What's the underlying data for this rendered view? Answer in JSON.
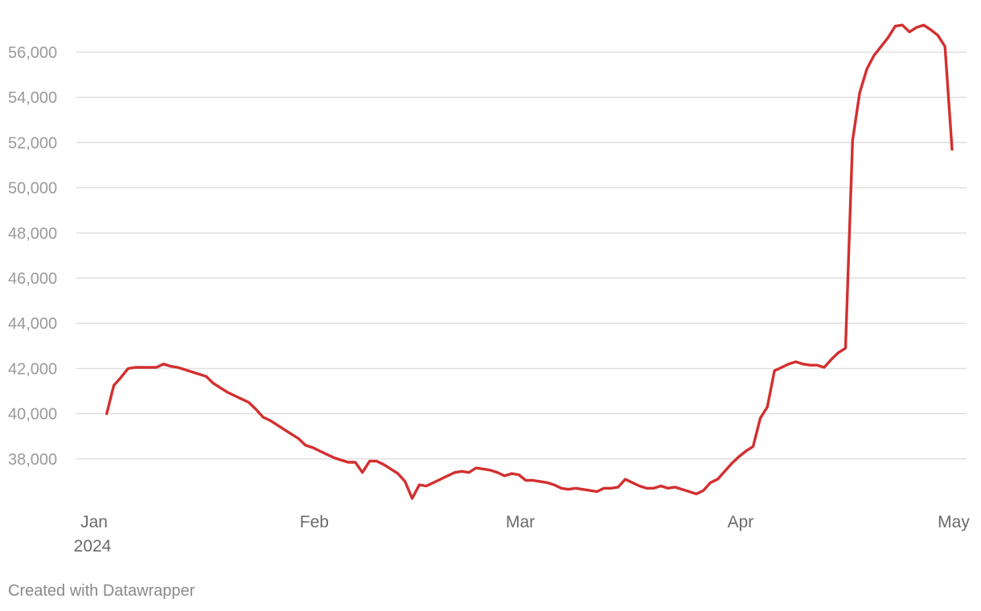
{
  "credit": "Created with Datawrapper",
  "colors": {
    "series": "#d32f2f",
    "grid": "#dedede",
    "ytick": "#9a9a9a",
    "xtick": "#6b6b6b"
  },
  "chart_data": {
    "type": "line",
    "title": "",
    "xlabel": "",
    "ylabel": "",
    "grid": "horizontal",
    "xlim": [
      "2024-01-01",
      "2024-05-01"
    ],
    "ylim": [
      36000,
      57600
    ],
    "yticks": [
      38000,
      40000,
      42000,
      44000,
      46000,
      48000,
      50000,
      52000,
      54000,
      56000
    ],
    "ytick_labels": [
      "38,000",
      "40,000",
      "42,000",
      "44,000",
      "46,000",
      "48,000",
      "50,000",
      "52,000",
      "54,000",
      "56,000"
    ],
    "xticks": [
      {
        "date": "2024-01-01",
        "label": "Jan",
        "sublabel": "2024"
      },
      {
        "date": "2024-02-01",
        "label": "Feb",
        "sublabel": ""
      },
      {
        "date": "2024-03-01",
        "label": "Mar",
        "sublabel": ""
      },
      {
        "date": "2024-04-01",
        "label": "Apr",
        "sublabel": ""
      },
      {
        "date": "2024-05-01",
        "label": "May",
        "sublabel": ""
      }
    ],
    "series": [
      {
        "color": "#d32f2f",
        "x": [
          "2024-01-03",
          "2024-01-04",
          "2024-01-05",
          "2024-01-06",
          "2024-01-07",
          "2024-01-08",
          "2024-01-09",
          "2024-01-10",
          "2024-01-11",
          "2024-01-12",
          "2024-01-13",
          "2024-01-14",
          "2024-01-15",
          "2024-01-16",
          "2024-01-17",
          "2024-01-18",
          "2024-01-19",
          "2024-01-20",
          "2024-01-21",
          "2024-01-22",
          "2024-01-23",
          "2024-01-24",
          "2024-01-25",
          "2024-01-26",
          "2024-01-27",
          "2024-01-28",
          "2024-01-29",
          "2024-01-30",
          "2024-01-31",
          "2024-02-01",
          "2024-02-02",
          "2024-02-03",
          "2024-02-04",
          "2024-02-05",
          "2024-02-06",
          "2024-02-07",
          "2024-02-08",
          "2024-02-09",
          "2024-02-10",
          "2024-02-11",
          "2024-02-12",
          "2024-02-13",
          "2024-02-14",
          "2024-02-15",
          "2024-02-16",
          "2024-02-17",
          "2024-02-18",
          "2024-02-19",
          "2024-02-20",
          "2024-02-21",
          "2024-02-22",
          "2024-02-23",
          "2024-02-24",
          "2024-02-25",
          "2024-02-26",
          "2024-02-27",
          "2024-02-28",
          "2024-02-29",
          "2024-03-01",
          "2024-03-02",
          "2024-03-03",
          "2024-03-04",
          "2024-03-05",
          "2024-03-06",
          "2024-03-07",
          "2024-03-08",
          "2024-03-09",
          "2024-03-10",
          "2024-03-11",
          "2024-03-12",
          "2024-03-13",
          "2024-03-14",
          "2024-03-15",
          "2024-03-16",
          "2024-03-17",
          "2024-03-18",
          "2024-03-19",
          "2024-03-20",
          "2024-03-21",
          "2024-03-22",
          "2024-03-23",
          "2024-03-24",
          "2024-03-25",
          "2024-03-26",
          "2024-03-27",
          "2024-03-28",
          "2024-03-29",
          "2024-03-30",
          "2024-03-31",
          "2024-04-01",
          "2024-04-02",
          "2024-04-03",
          "2024-04-04",
          "2024-04-05",
          "2024-04-06",
          "2024-04-07",
          "2024-04-08",
          "2024-04-09",
          "2024-04-10",
          "2024-04-11",
          "2024-04-12",
          "2024-04-13",
          "2024-04-14",
          "2024-04-15",
          "2024-04-16",
          "2024-04-17",
          "2024-04-18",
          "2024-04-19",
          "2024-04-20",
          "2024-04-21",
          "2024-04-22",
          "2024-04-23",
          "2024-04-24",
          "2024-04-25",
          "2024-04-26",
          "2024-04-27",
          "2024-04-28",
          "2024-04-29",
          "2024-04-30",
          "2024-05-01"
        ],
        "y": [
          40000,
          41250,
          41600,
          42000,
          42050,
          42050,
          42050,
          42050,
          42200,
          42100,
          42050,
          41950,
          41850,
          41750,
          41650,
          41350,
          41150,
          40950,
          40800,
          40650,
          40500,
          40200,
          39850,
          39700,
          39500,
          39300,
          39100,
          38900,
          38600,
          38500,
          38350,
          38200,
          38050,
          37950,
          37850,
          37850,
          37400,
          37900,
          37900,
          37750,
          37550,
          37350,
          37000,
          36250,
          36850,
          36800,
          36950,
          37100,
          37250,
          37400,
          37450,
          37400,
          37600,
          37550,
          37500,
          37400,
          37250,
          37350,
          37300,
          37050,
          37050,
          37000,
          36950,
          36850,
          36700,
          36650,
          36700,
          36650,
          36600,
          36550,
          36700,
          36700,
          36750,
          37100,
          36950,
          36800,
          36700,
          36700,
          36800,
          36700,
          36750,
          36650,
          36550,
          36450,
          36600,
          36950,
          37100,
          37450,
          37800,
          38100,
          38350,
          38550,
          39800,
          40300,
          41900,
          42050,
          42200,
          42300,
          42200,
          42150,
          42150,
          42050,
          42400,
          42700,
          42900,
          52100,
          54200,
          55250,
          55850,
          56250,
          56650,
          57150,
          57200,
          56900,
          57100,
          57200,
          57000,
          56750,
          56250,
          51700
        ]
      }
    ]
  }
}
